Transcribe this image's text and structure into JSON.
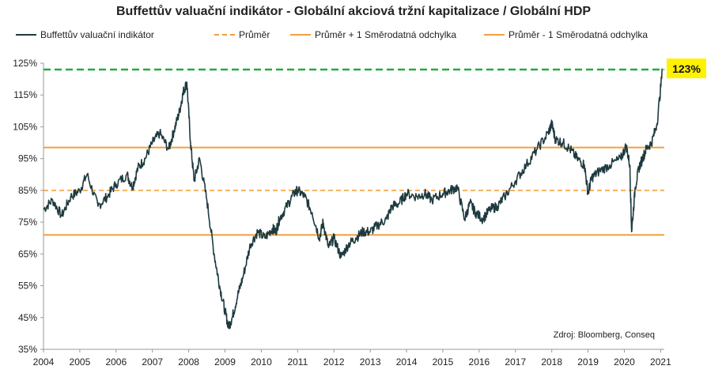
{
  "chart_data": {
    "type": "line",
    "title": "Buffettův valuační indikátor  - Globální  akciová tržní kapitalizace  / Globální HDP",
    "xlabel": "",
    "ylabel": "",
    "xlim": [
      2004,
      2021.1
    ],
    "ylim": [
      35,
      125
    ],
    "y_ticks": [
      35,
      45,
      55,
      65,
      75,
      85,
      95,
      105,
      115,
      125
    ],
    "y_tick_suffix": "%",
    "x_ticks": [
      2004,
      2005,
      2006,
      2007,
      2008,
      2009,
      2010,
      2011,
      2012,
      2013,
      2014,
      2015,
      2016,
      2017,
      2018,
      2019,
      2020,
      2021
    ],
    "grid": false,
    "legend_placement": "top",
    "source_note": "Zdroj: Bloomberg, Conseq",
    "callout": {
      "label": "123%",
      "value": 123,
      "color": "#fff200"
    },
    "colors": {
      "main": "#1e3a3f",
      "bands": "#f0a040",
      "current_line": "#22aa44"
    },
    "series": [
      {
        "name": "Buffettův valuační indikátor",
        "style": "solid",
        "x": [
          2004.0,
          2004.25,
          2004.5,
          2004.75,
          2005.0,
          2005.2,
          2005.5,
          2005.75,
          2006.0,
          2006.3,
          2006.45,
          2006.6,
          2006.8,
          2007.0,
          2007.2,
          2007.45,
          2007.6,
          2007.75,
          2007.85,
          2007.95,
          2008.05,
          2008.15,
          2008.3,
          2008.5,
          2008.7,
          2008.85,
          2009.0,
          2009.1,
          2009.2,
          2009.35,
          2009.5,
          2009.7,
          2009.9,
          2010.1,
          2010.3,
          2010.4,
          2010.5,
          2010.7,
          2010.9,
          2011.0,
          2011.2,
          2011.4,
          2011.6,
          2011.7,
          2011.85,
          2012.0,
          2012.2,
          2012.4,
          2012.6,
          2012.8,
          2013.0,
          2013.2,
          2013.45,
          2013.6,
          2013.8,
          2014.0,
          2014.3,
          2014.5,
          2014.7,
          2015.0,
          2015.2,
          2015.4,
          2015.6,
          2015.75,
          2015.9,
          2016.1,
          2016.3,
          2016.5,
          2016.7,
          2017.0,
          2017.3,
          2017.6,
          2017.9,
          2018.0,
          2018.1,
          2018.3,
          2018.5,
          2018.7,
          2018.9,
          2019.0,
          2019.1,
          2019.3,
          2019.6,
          2019.9,
          2020.05,
          2020.15,
          2020.2,
          2020.3,
          2020.4,
          2020.5,
          2020.6,
          2020.75,
          2020.9,
          2021.05
        ],
        "values": [
          79,
          82,
          77,
          83,
          85,
          90,
          80,
          83,
          87,
          90,
          86,
          92,
          95,
          100,
          103,
          98,
          104,
          110,
          116,
          119,
          100,
          88,
          95,
          82,
          65,
          55,
          47,
          42,
          45,
          52,
          58,
          68,
          72,
          70,
          73,
          72,
          76,
          80,
          84,
          85,
          83,
          78,
          70,
          75,
          67,
          70,
          64,
          68,
          70,
          72,
          72,
          74,
          76,
          80,
          81,
          84,
          83,
          84,
          82,
          84,
          85,
          86,
          76,
          81,
          78,
          76,
          79,
          80,
          83,
          88,
          93,
          98,
          103,
          106,
          101,
          100,
          98,
          95,
          93,
          84,
          89,
          91,
          93,
          95,
          99,
          93,
          72,
          86,
          92,
          95,
          98,
          100,
          106,
          123
        ]
      },
      {
        "name": "Průměr",
        "style": "dashed",
        "value": 85
      },
      {
        "name": "Průměr + 1 Směrodatná odchylka",
        "style": "solid",
        "value": 98.5
      },
      {
        "name": "Průměr - 1 Směrodatná odchylka",
        "style": "solid",
        "value": 71
      }
    ]
  }
}
